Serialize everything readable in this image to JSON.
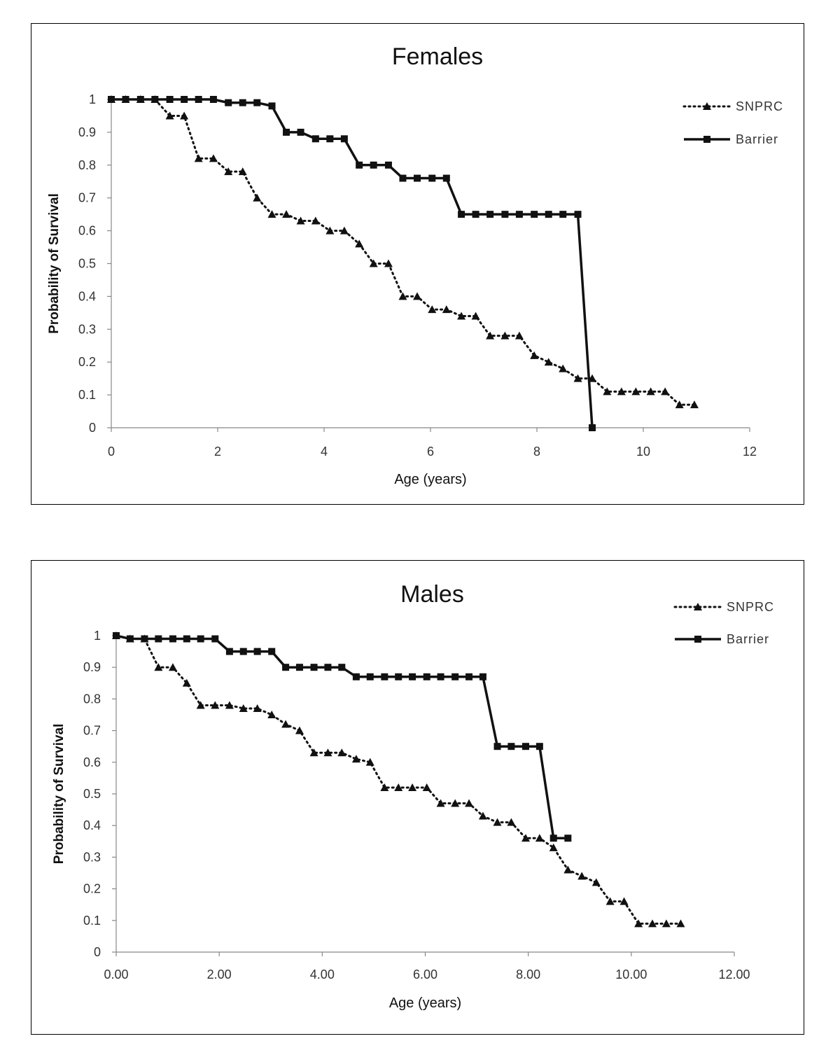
{
  "chart_data": [
    {
      "type": "line",
      "title": "Females",
      "xlabel": "Age (years)",
      "ylabel": "Probability of Survival",
      "xlim": [
        0,
        12
      ],
      "ylim": [
        0,
        1
      ],
      "x_ticks": [
        "0",
        "2",
        "4",
        "6",
        "8",
        "10",
        "12"
      ],
      "y_ticks": [
        "0",
        "0.1",
        "0.2",
        "0.3",
        "0.4",
        "0.5",
        "0.6",
        "0.7",
        "0.8",
        "0.9",
        "1"
      ],
      "legend_position": "top-right",
      "grid": false,
      "series": [
        {
          "name": "SNPRC",
          "style": "dotted",
          "marker": "triangle",
          "x": [
            0,
            0.27,
            0.55,
            0.82,
            1.1,
            1.37,
            1.64,
            1.92,
            2.2,
            2.47,
            2.74,
            3.02,
            3.29,
            3.56,
            3.84,
            4.11,
            4.38,
            4.66,
            4.93,
            5.21,
            5.48,
            5.75,
            6.03,
            6.3,
            6.58,
            6.85,
            7.12,
            7.4,
            7.67,
            7.95,
            8.22,
            8.49,
            8.77,
            9.04,
            9.32,
            9.59,
            9.86,
            10.14,
            10.41,
            10.68,
            10.96
          ],
          "y": [
            1,
            1,
            1,
            1,
            0.95,
            0.95,
            0.82,
            0.82,
            0.78,
            0.78,
            0.7,
            0.65,
            0.65,
            0.63,
            0.63,
            0.6,
            0.6,
            0.56,
            0.5,
            0.5,
            0.4,
            0.4,
            0.36,
            0.36,
            0.34,
            0.34,
            0.28,
            0.28,
            0.28,
            0.22,
            0.2,
            0.18,
            0.15,
            0.15,
            0.11,
            0.11,
            0.11,
            0.11,
            0.11,
            0.07,
            0.07
          ]
        },
        {
          "name": "Barrier",
          "style": "solid",
          "marker": "square",
          "x": [
            0,
            0.27,
            0.55,
            0.82,
            1.1,
            1.37,
            1.64,
            1.92,
            2.2,
            2.47,
            2.74,
            3.02,
            3.29,
            3.56,
            3.84,
            4.11,
            4.38,
            4.66,
            4.93,
            5.21,
            5.48,
            5.75,
            6.03,
            6.3,
            6.58,
            6.85,
            7.12,
            7.4,
            7.67,
            7.95,
            8.22,
            8.49,
            8.77,
            9.04
          ],
          "y": [
            1,
            1,
            1,
            1,
            1,
            1,
            1,
            1,
            0.99,
            0.99,
            0.99,
            0.98,
            0.9,
            0.9,
            0.88,
            0.88,
            0.88,
            0.8,
            0.8,
            0.8,
            0.76,
            0.76,
            0.76,
            0.76,
            0.65,
            0.65,
            0.65,
            0.65,
            0.65,
            0.65,
            0.65,
            0.65,
            0.65,
            0
          ]
        }
      ]
    },
    {
      "type": "line",
      "title": "Males",
      "xlabel": "Age (years)",
      "ylabel": "Probability of Survival",
      "xlim": [
        0,
        12
      ],
      "ylim": [
        0,
        1
      ],
      "x_ticks": [
        "0.00",
        "2.00",
        "4.00",
        "6.00",
        "8.00",
        "10.00",
        "12.00"
      ],
      "y_ticks": [
        "0",
        "0.1",
        "0.2",
        "0.3",
        "0.4",
        "0.5",
        "0.6",
        "0.7",
        "0.8",
        "0.9",
        "1"
      ],
      "legend_position": "top-right",
      "grid": false,
      "series": [
        {
          "name": "SNPRC",
          "style": "dotted",
          "marker": "triangle",
          "x": [
            0,
            0.27,
            0.55,
            0.82,
            1.1,
            1.37,
            1.64,
            1.92,
            2.2,
            2.47,
            2.74,
            3.02,
            3.29,
            3.56,
            3.84,
            4.11,
            4.38,
            4.66,
            4.93,
            5.21,
            5.48,
            5.75,
            6.03,
            6.3,
            6.58,
            6.85,
            7.12,
            7.4,
            7.67,
            7.95,
            8.22,
            8.49,
            8.77,
            9.04,
            9.32,
            9.59,
            9.86,
            10.14,
            10.41,
            10.68,
            10.96
          ],
          "y": [
            1,
            0.99,
            0.99,
            0.9,
            0.9,
            0.85,
            0.78,
            0.78,
            0.78,
            0.77,
            0.77,
            0.75,
            0.72,
            0.7,
            0.63,
            0.63,
            0.63,
            0.61,
            0.6,
            0.52,
            0.52,
            0.52,
            0.52,
            0.47,
            0.47,
            0.47,
            0.43,
            0.41,
            0.41,
            0.36,
            0.36,
            0.33,
            0.26,
            0.24,
            0.22,
            0.16,
            0.16,
            0.09,
            0.09,
            0.09,
            0.09
          ]
        },
        {
          "name": "Barrier",
          "style": "solid",
          "marker": "square",
          "x": [
            0,
            0.27,
            0.55,
            0.82,
            1.1,
            1.37,
            1.64,
            1.92,
            2.2,
            2.47,
            2.74,
            3.02,
            3.29,
            3.56,
            3.84,
            4.11,
            4.38,
            4.66,
            4.93,
            5.21,
            5.48,
            5.75,
            6.03,
            6.3,
            6.58,
            6.85,
            7.12,
            7.4,
            7.67,
            7.95,
            8.22,
            8.49,
            8.77
          ],
          "y": [
            1,
            0.99,
            0.99,
            0.99,
            0.99,
            0.99,
            0.99,
            0.99,
            0.95,
            0.95,
            0.95,
            0.95,
            0.9,
            0.9,
            0.9,
            0.9,
            0.9,
            0.87,
            0.87,
            0.87,
            0.87,
            0.87,
            0.87,
            0.87,
            0.87,
            0.87,
            0.87,
            0.65,
            0.65,
            0.65,
            0.65,
            0.36,
            0.36
          ]
        }
      ]
    }
  ]
}
